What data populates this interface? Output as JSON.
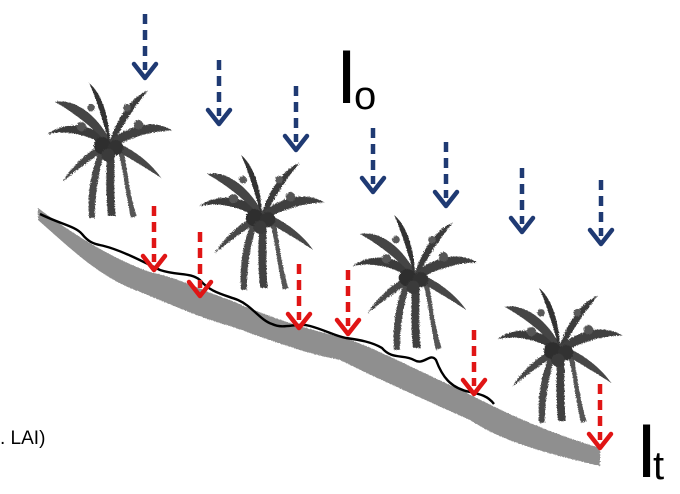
{
  "labels": {
    "incident": {
      "main": "I",
      "sub": "o"
    },
    "transmitted": {
      "main": "I",
      "sub": "t"
    },
    "footnote": ". LAI)"
  },
  "colors": {
    "incident_arrow": "#1f3a73",
    "transmitted_arrow": "#e01515",
    "ground_line": "#000000",
    "slope_fill": "#8f8f8f",
    "palm": "#3a3a3a"
  },
  "icons": [
    "palm-tree-icon",
    "incident-light-arrow",
    "transmitted-light-arrow"
  ]
}
